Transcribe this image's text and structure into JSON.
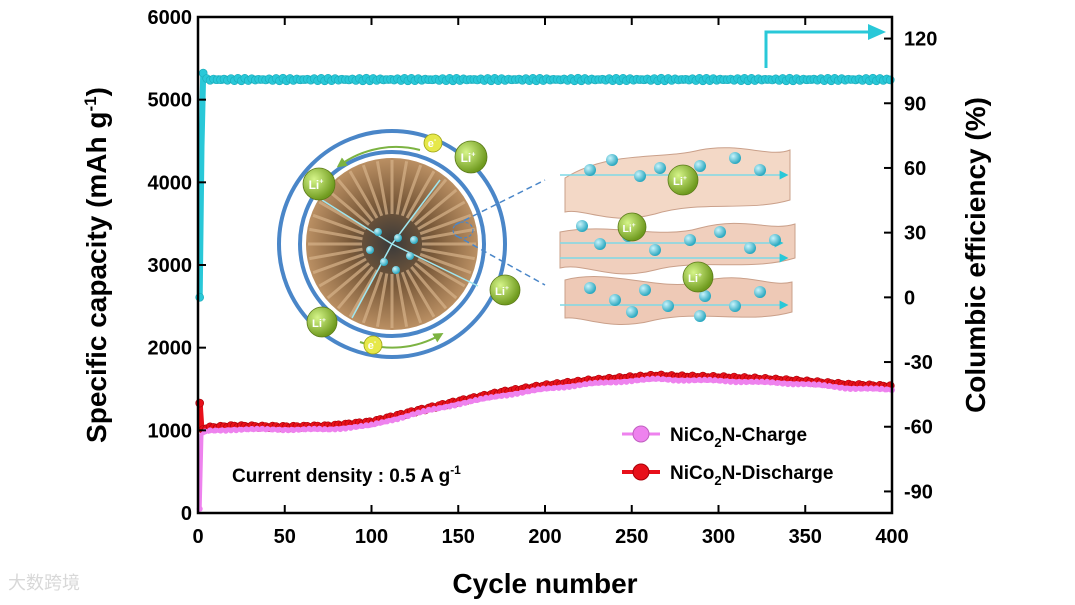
{
  "watermark": "大数跨境",
  "chart_data": {
    "type": "line",
    "xlabel": "Cycle number",
    "ylabel_left": {
      "main": "Specific capacity (mAh g",
      "sup": "-1",
      "close": ")"
    },
    "ylabel_right": "Columbic efficiency (%)",
    "xlim": [
      0,
      400
    ],
    "ylim_left": [
      0,
      6000
    ],
    "ylim_right": [
      -100,
      130
    ],
    "x_ticks": [
      0,
      50,
      100,
      150,
      200,
      250,
      300,
      350,
      400
    ],
    "y_left_ticks": [
      0,
      1000,
      2000,
      3000,
      4000,
      5000,
      6000
    ],
    "y_right_ticks": [
      -90,
      -60,
      -30,
      0,
      30,
      60,
      90,
      120
    ],
    "annotation": {
      "main": "Current density : 0.5 A g",
      "sup": "-1"
    },
    "colors": {
      "charge": "#ee82ee",
      "discharge": "#e8101a",
      "efficiency": "#29c8d8"
    },
    "legend": [
      {
        "pre": "NiCo",
        "sub": "2",
        "post": "N-Charge",
        "color": "#ee82ee"
      },
      {
        "pre": "NiCo",
        "sub": "2",
        "post": "N-Discharge",
        "color": "#e8101a"
      }
    ],
    "series": [
      {
        "name": "NiCo2N-Charge",
        "axis": "left",
        "x": [
          1,
          2,
          5,
          20,
          50,
          75,
          100,
          125,
          150,
          175,
          200,
          225,
          250,
          265,
          275,
          300,
          325,
          350,
          375,
          400
        ],
        "y": [
          50,
          950,
          990,
          1010,
          1010,
          1010,
          1060,
          1200,
          1320,
          1420,
          1500,
          1560,
          1600,
          1620,
          1610,
          1600,
          1580,
          1560,
          1510,
          1490
        ]
      },
      {
        "name": "NiCo2N-Discharge",
        "axis": "left",
        "x": [
          1,
          2,
          5,
          20,
          50,
          75,
          100,
          125,
          150,
          175,
          200,
          225,
          250,
          265,
          275,
          300,
          325,
          350,
          375,
          400
        ],
        "y": [
          1330,
          1000,
          1030,
          1050,
          1040,
          1050,
          1100,
          1230,
          1350,
          1460,
          1540,
          1600,
          1640,
          1660,
          1650,
          1640,
          1620,
          1590,
          1550,
          1530
        ]
      },
      {
        "name": "Columbic efficiency",
        "axis": "right",
        "x": [
          1,
          2,
          3,
          5,
          50,
          100,
          150,
          200,
          250,
          300,
          350,
          400
        ],
        "y": [
          0,
          70,
          104,
          101,
          101,
          101,
          101,
          101,
          101,
          101,
          101,
          101
        ]
      }
    ],
    "inset_labels": {
      "li": "Li",
      "li_sup": "+",
      "e": "e",
      "e_sup": "-"
    }
  }
}
